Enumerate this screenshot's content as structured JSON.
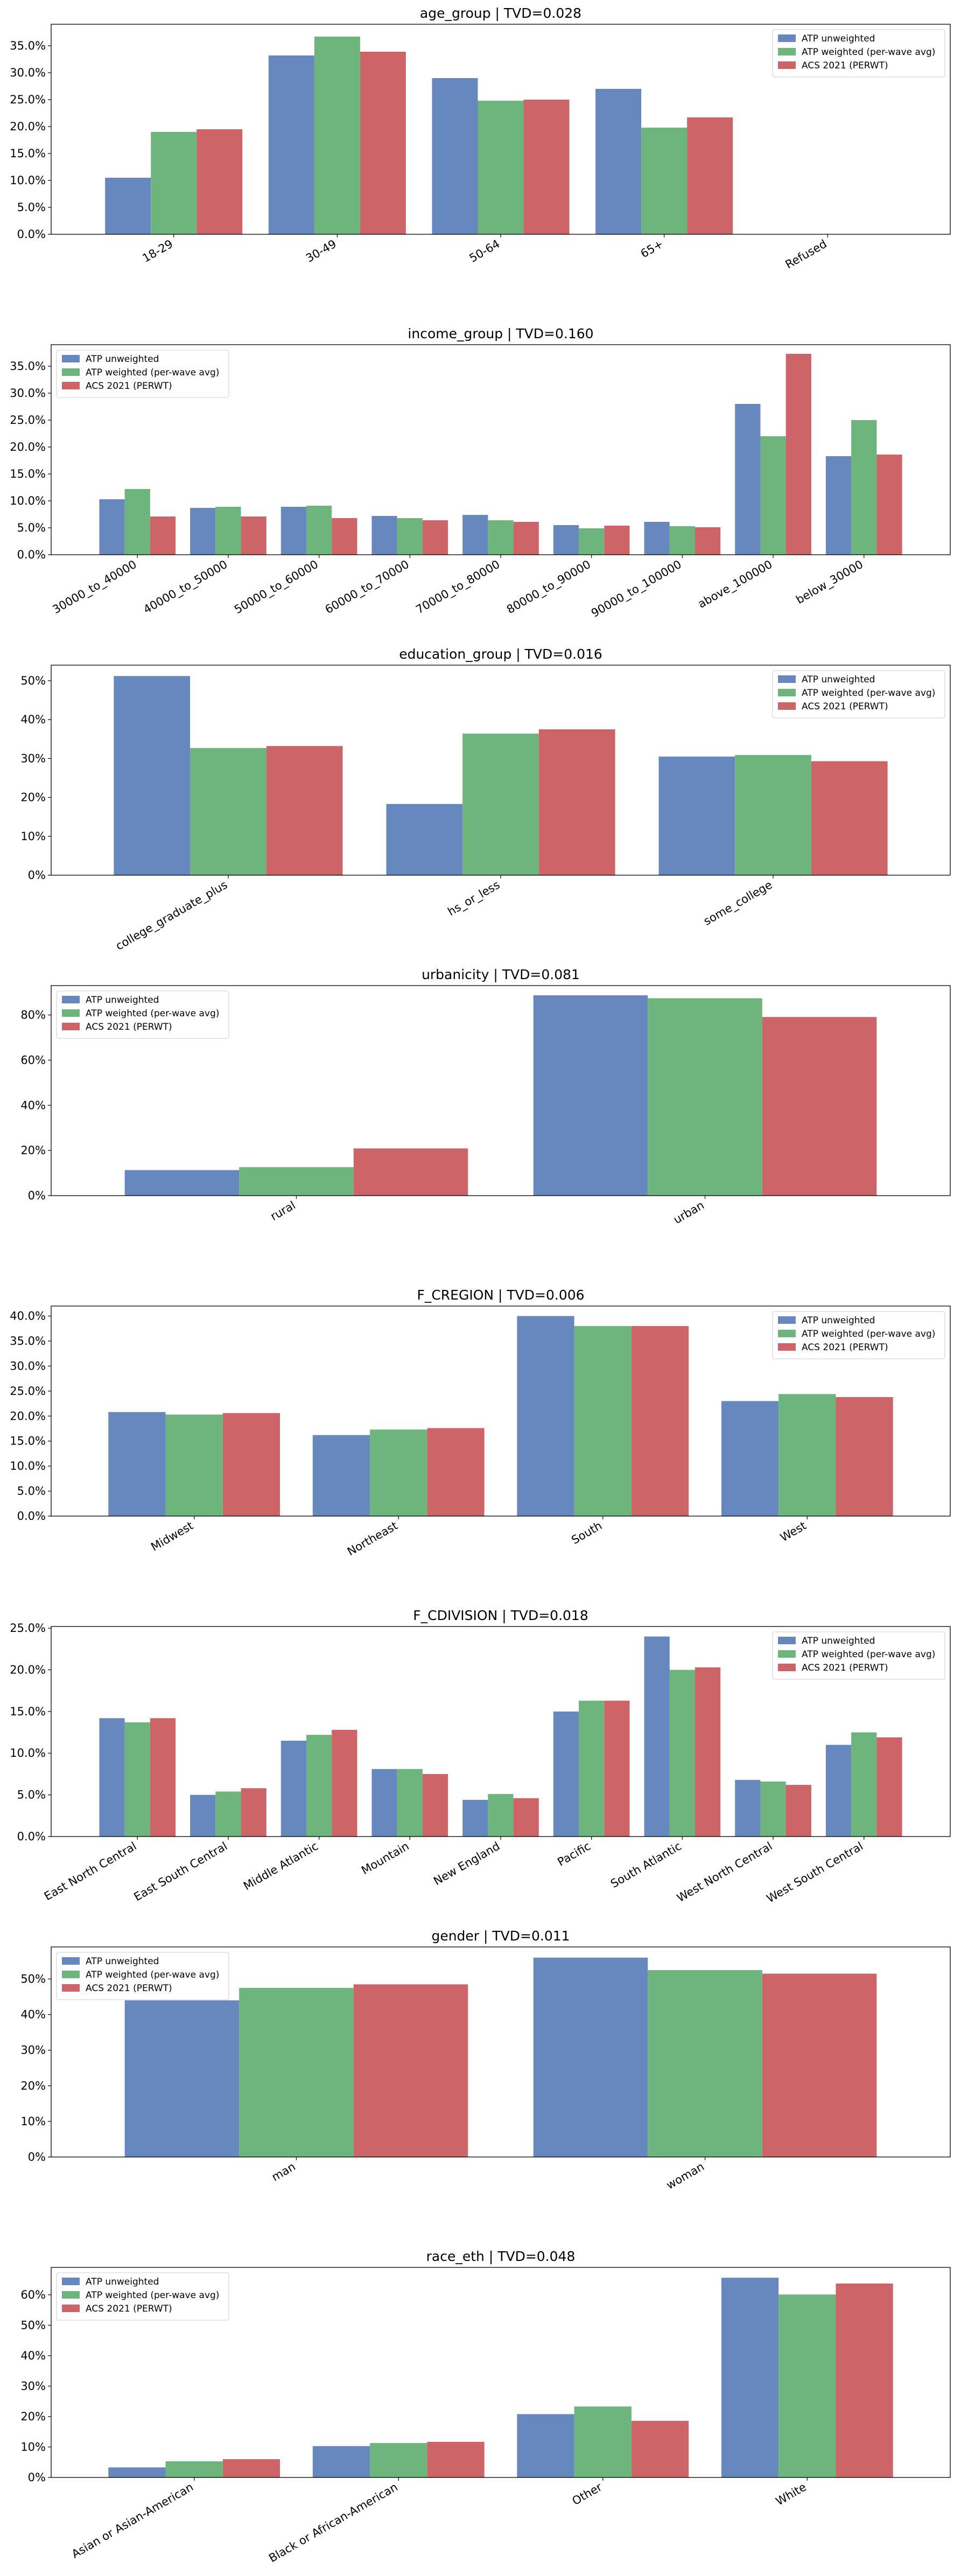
{
  "chart_data": [
    {
      "type": "bar",
      "title": "age_group   |   TVD=0.028",
      "categories": [
        "18-29",
        "30-49",
        "50-64",
        "65+",
        "Refused"
      ],
      "series": [
        {
          "name": "ATP unweighted",
          "values": [
            10.5,
            33.2,
            29.0,
            27.0,
            0.0
          ],
          "color": "#6788be"
        },
        {
          "name": "ATP weighted (per-wave avg)",
          "values": [
            19.0,
            36.7,
            24.8,
            19.8,
            0.0
          ],
          "color": "#6db57c"
        },
        {
          "name": "ACS 2021 (PERWT)",
          "values": [
            19.5,
            33.9,
            25.0,
            21.7,
            0.0
          ],
          "color": "#cd6468"
        }
      ],
      "ylim": [
        0,
        39.0
      ],
      "yticks": [
        0,
        5,
        10,
        15,
        20,
        25,
        30,
        35
      ],
      "yformat": "0.0",
      "legend": "top-right",
      "grid": false
    },
    {
      "type": "bar",
      "title": "income_group   |   TVD=0.160",
      "categories": [
        "30000_to_40000",
        "40000_to_50000",
        "50000_to_60000",
        "60000_to_70000",
        "70000_to_80000",
        "80000_to_90000",
        "90000_to_100000",
        "above_100000",
        "below_30000"
      ],
      "series": [
        {
          "name": "ATP unweighted",
          "values": [
            10.3,
            8.7,
            8.9,
            7.2,
            7.4,
            5.5,
            6.1,
            28.0,
            18.3
          ],
          "color": "#6788be"
        },
        {
          "name": "ATP weighted (per-wave avg)",
          "values": [
            12.2,
            8.9,
            9.1,
            6.8,
            6.4,
            4.9,
            5.3,
            22.0,
            25.0
          ],
          "color": "#6db57c"
        },
        {
          "name": "ACS 2021 (PERWT)",
          "values": [
            7.1,
            7.1,
            6.8,
            6.4,
            6.1,
            5.4,
            5.1,
            37.3,
            18.6
          ],
          "color": "#cd6468"
        }
      ],
      "ylim": [
        0,
        39.0
      ],
      "yticks": [
        0,
        5,
        10,
        15,
        20,
        25,
        30,
        35
      ],
      "yformat": "0.0",
      "legend": "top-left",
      "grid": false
    },
    {
      "type": "bar",
      "title": "education_group   |   TVD=0.016",
      "categories": [
        "college_graduate_plus",
        "hs_or_less",
        "some_college"
      ],
      "series": [
        {
          "name": "ATP unweighted",
          "values": [
            51.2,
            18.3,
            30.5
          ],
          "color": "#6788be"
        },
        {
          "name": "ATP weighted (per-wave avg)",
          "values": [
            32.7,
            36.4,
            30.9
          ],
          "color": "#6db57c"
        },
        {
          "name": "ACS 2021 (PERWT)",
          "values": [
            33.2,
            37.5,
            29.3
          ],
          "color": "#cd6468"
        }
      ],
      "ylim": [
        0,
        54.0
      ],
      "yticks": [
        0,
        10,
        20,
        30,
        40,
        50
      ],
      "yformat": "0",
      "legend": "top-right",
      "grid": false
    },
    {
      "type": "bar",
      "title": "urbanicity   |   TVD=0.081",
      "categories": [
        "rural",
        "urban"
      ],
      "series": [
        {
          "name": "ATP unweighted",
          "values": [
            11.3,
            88.7
          ],
          "color": "#6788be"
        },
        {
          "name": "ATP weighted (per-wave avg)",
          "values": [
            12.6,
            87.4
          ],
          "color": "#6db57c"
        },
        {
          "name": "ACS 2021 (PERWT)",
          "values": [
            20.9,
            79.1
          ],
          "color": "#cd6468"
        }
      ],
      "ylim": [
        0,
        93.0
      ],
      "yticks": [
        0,
        20,
        40,
        60,
        80
      ],
      "yformat": "0",
      "legend": "top-left",
      "grid": false
    },
    {
      "type": "bar",
      "title": "F_CREGION   |   TVD=0.006",
      "categories": [
        "Midwest",
        "Northeast",
        "South",
        "West"
      ],
      "series": [
        {
          "name": "ATP unweighted",
          "values": [
            20.8,
            16.2,
            40.0,
            23.0
          ],
          "color": "#6788be"
        },
        {
          "name": "ATP weighted (per-wave avg)",
          "values": [
            20.3,
            17.3,
            38.0,
            24.4
          ],
          "color": "#6db57c"
        },
        {
          "name": "ACS 2021 (PERWT)",
          "values": [
            20.6,
            17.6,
            38.0,
            23.8
          ],
          "color": "#cd6468"
        }
      ],
      "ylim": [
        0,
        42.0
      ],
      "yticks": [
        0,
        5,
        10,
        15,
        20,
        25,
        30,
        35,
        40
      ],
      "yformat": "0.0",
      "legend": "top-right",
      "grid": false
    },
    {
      "type": "bar",
      "title": "F_CDIVISION   |   TVD=0.018",
      "categories": [
        "East North Central",
        "East South Central",
        "Middle Atlantic",
        "Mountain",
        "New England",
        "Pacific",
        "South Atlantic",
        "West North Central",
        "West South Central"
      ],
      "series": [
        {
          "name": "ATP unweighted",
          "values": [
            14.2,
            5.0,
            11.5,
            8.1,
            4.4,
            15.0,
            24.0,
            6.8,
            11.0
          ],
          "color": "#6788be"
        },
        {
          "name": "ATP weighted (per-wave avg)",
          "values": [
            13.7,
            5.4,
            12.2,
            8.1,
            5.1,
            16.3,
            20.0,
            6.6,
            12.5
          ],
          "color": "#6db57c"
        },
        {
          "name": "ACS 2021 (PERWT)",
          "values": [
            14.2,
            5.8,
            12.8,
            7.5,
            4.6,
            16.3,
            20.3,
            6.2,
            11.9
          ],
          "color": "#cd6468"
        }
      ],
      "ylim": [
        0,
        25.2
      ],
      "yticks": [
        0,
        5,
        10,
        15,
        20,
        25
      ],
      "yformat": "0.0",
      "legend": "top-right",
      "grid": false
    },
    {
      "type": "bar",
      "title": "gender   |   TVD=0.011",
      "categories": [
        "man",
        "woman"
      ],
      "series": [
        {
          "name": "ATP unweighted",
          "values": [
            44.0,
            56.0
          ],
          "color": "#6788be"
        },
        {
          "name": "ATP weighted (per-wave avg)",
          "values": [
            47.5,
            52.5
          ],
          "color": "#6db57c"
        },
        {
          "name": "ACS 2021 (PERWT)",
          "values": [
            48.5,
            51.5
          ],
          "color": "#cd6468"
        }
      ],
      "ylim": [
        0,
        59.0
      ],
      "yticks": [
        0,
        10,
        20,
        30,
        40,
        50
      ],
      "yformat": "0",
      "legend": "top-left",
      "grid": false
    },
    {
      "type": "bar",
      "title": "race_eth   |   TVD=0.048",
      "categories": [
        "Asian or Asian-American",
        "Black or African-American",
        "Other",
        "White"
      ],
      "series": [
        {
          "name": "ATP unweighted",
          "values": [
            3.3,
            10.3,
            20.8,
            65.6
          ],
          "color": "#6788be"
        },
        {
          "name": "ATP weighted (per-wave avg)",
          "values": [
            5.3,
            11.3,
            23.3,
            60.1
          ],
          "color": "#6db57c"
        },
        {
          "name": "ACS 2021 (PERWT)",
          "values": [
            6.0,
            11.7,
            18.6,
            63.7
          ],
          "color": "#cd6468"
        }
      ],
      "ylim": [
        0,
        69.0
      ],
      "yticks": [
        0,
        10,
        20,
        30,
        40,
        50,
        60
      ],
      "yformat": "0",
      "legend": "top-left",
      "grid": false
    }
  ]
}
